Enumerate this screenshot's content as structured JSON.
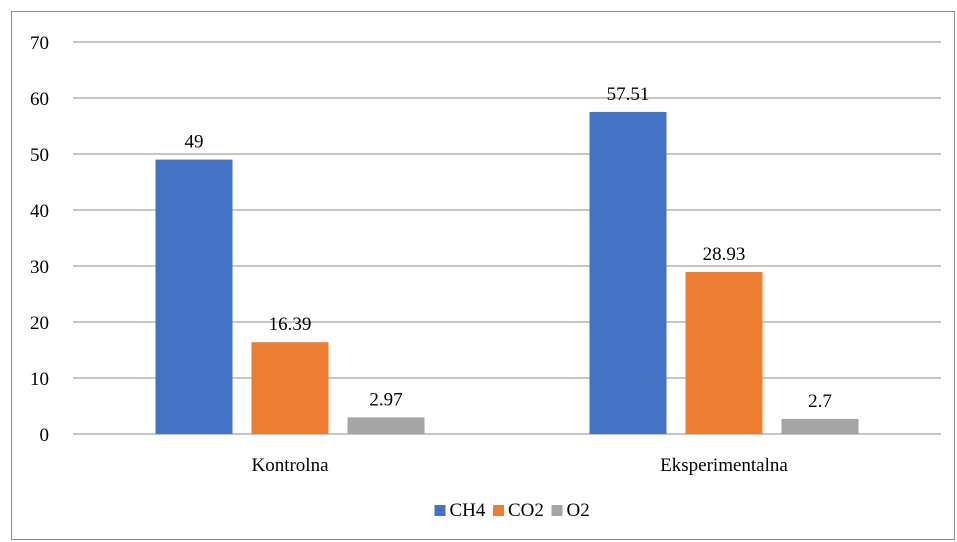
{
  "chart_data": {
    "type": "bar",
    "categories": [
      "Kontrolna",
      "Eksperimentalna"
    ],
    "series": [
      {
        "name": "CH4",
        "values": [
          49,
          57.51
        ],
        "labels": [
          "49",
          "57.51"
        ],
        "color": "#4472C4"
      },
      {
        "name": "CO2",
        "values": [
          16.39,
          28.93
        ],
        "labels": [
          "16.39",
          "28.93"
        ],
        "color": "#ED7D31"
      },
      {
        "name": "O2",
        "values": [
          2.97,
          2.7
        ],
        "labels": [
          "2.97",
          "2.7"
        ],
        "color": "#A5A5A5"
      }
    ],
    "ylim": [
      0,
      70
    ],
    "yticks": [
      0,
      10,
      20,
      30,
      40,
      50,
      60,
      70
    ],
    "grid": true,
    "legend_position": "bottom",
    "title": "",
    "xlabel": "",
    "ylabel": ""
  },
  "colors": {
    "gridline": "#8c8c8c",
    "frame": "#8c8c8c"
  }
}
